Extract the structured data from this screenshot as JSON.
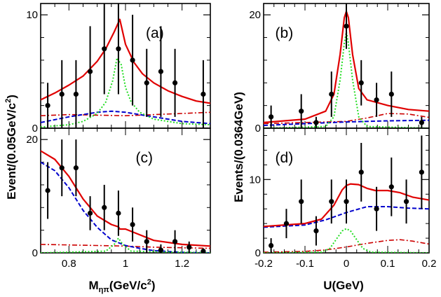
{
  "colors": {
    "total": "#e00000",
    "signal": "#22dd22",
    "background1": "#0000cc",
    "background2": "#cc0000",
    "data": "#000000"
  },
  "labels": {
    "left_ylabel": "Event/(0.05GeV/c",
    "left_ylabel_exp": "2",
    "left_ylabel_tail": ")",
    "right_ylabel": "Events/(0.0364GeV)",
    "left_xlabel_main": "M",
    "left_xlabel_sub": "ηπ",
    "left_xlabel_rest": "(GeV/c",
    "left_xlabel_exp": "2",
    "left_xlabel_tail": ")",
    "right_xlabel": "U(GeV)"
  },
  "chart_data": [
    {
      "type": "scatter",
      "panel": "(a)",
      "xlim": [
        0.7,
        1.3
      ],
      "ylim": [
        0,
        11
      ],
      "xticks": [],
      "yticks": [
        0,
        10
      ],
      "points": [
        {
          "x": 0.725,
          "y": 2,
          "err": 2
        },
        {
          "x": 0.775,
          "y": 3,
          "err": 3
        },
        {
          "x": 0.825,
          "y": 3,
          "err": 3
        },
        {
          "x": 0.875,
          "y": 5,
          "err": 4
        },
        {
          "x": 0.925,
          "y": 7,
          "err": 4
        },
        {
          "x": 0.975,
          "y": 7,
          "err": 4
        },
        {
          "x": 1.025,
          "y": 6,
          "err": 4
        },
        {
          "x": 1.075,
          "y": 4,
          "err": 3
        },
        {
          "x": 1.125,
          "y": 5,
          "err": 4
        },
        {
          "x": 1.175,
          "y": 4,
          "err": 3
        },
        {
          "x": 1.275,
          "y": 3,
          "err": 3
        }
      ],
      "series": [
        {
          "role": "total",
          "x": [
            0.7,
            0.75,
            0.8,
            0.85,
            0.9,
            0.93,
            0.96,
            0.98,
            1.0,
            1.03,
            1.06,
            1.1,
            1.15,
            1.2,
            1.25,
            1.3
          ],
          "y": [
            2.5,
            3.1,
            3.8,
            4.6,
            5.9,
            7.0,
            8.5,
            9.6,
            7.4,
            5.8,
            4.8,
            4.0,
            3.3,
            2.8,
            2.4,
            2.2
          ]
        },
        {
          "role": "signal",
          "x": [
            0.7,
            0.8,
            0.85,
            0.9,
            0.93,
            0.955,
            0.97,
            0.985,
            1.0,
            1.02,
            1.05,
            1.1,
            1.2,
            1.3
          ],
          "y": [
            0.1,
            0.3,
            0.6,
            1.3,
            2.3,
            4.2,
            6.2,
            5.6,
            3.6,
            2.3,
            1.4,
            0.8,
            0.4,
            0.3
          ]
        },
        {
          "role": "background1",
          "x": [
            0.7,
            0.8,
            0.9,
            0.95,
            1.0,
            1.05,
            1.1,
            1.2,
            1.3
          ],
          "y": [
            0.5,
            1.0,
            1.4,
            1.5,
            1.4,
            1.2,
            1.0,
            0.6,
            0.4
          ]
        },
        {
          "role": "background2",
          "x": [
            0.7,
            0.8,
            0.9,
            1.0,
            1.1,
            1.2,
            1.3
          ],
          "y": [
            1.1,
            1.2,
            1.15,
            1.1,
            1.2,
            1.3,
            1.4
          ]
        }
      ]
    },
    {
      "type": "scatter",
      "panel": "(b)",
      "xlim": [
        -0.2,
        0.2
      ],
      "ylim": [
        0,
        22
      ],
      "xticks": [],
      "yticks": [
        0,
        20
      ],
      "points": [
        {
          "x": -0.182,
          "y": 2,
          "err": 2
        },
        {
          "x": -0.109,
          "y": 3,
          "err": 3
        },
        {
          "x": -0.073,
          "y": 1,
          "err": 1
        },
        {
          "x": -0.036,
          "y": 6,
          "err": 4
        },
        {
          "x": 0.0,
          "y": 18,
          "err": 4
        },
        {
          "x": 0.036,
          "y": 8,
          "err": 4
        },
        {
          "x": 0.073,
          "y": 5,
          "err": 3
        },
        {
          "x": 0.109,
          "y": 6,
          "err": 4
        },
        {
          "x": 0.182,
          "y": 1,
          "err": 1
        }
      ],
      "series": [
        {
          "role": "total",
          "x": [
            -0.2,
            -0.1,
            -0.05,
            -0.03,
            -0.015,
            -0.005,
            0.0,
            0.005,
            0.015,
            0.03,
            0.05,
            0.1,
            0.15,
            0.2
          ],
          "y": [
            1.0,
            1.6,
            3.0,
            6.0,
            13.0,
            19.5,
            20.6,
            19.5,
            13.0,
            7.0,
            5.0,
            4.0,
            3.3,
            3.0
          ]
        },
        {
          "role": "signal",
          "x": [
            -0.2,
            -0.05,
            -0.03,
            -0.015,
            -0.005,
            0.0,
            0.005,
            0.015,
            0.03,
            0.05,
            0.2
          ],
          "y": [
            0.0,
            0.3,
            2.0,
            8.5,
            15.0,
            17.0,
            15.0,
            8.5,
            2.0,
            0.3,
            0.0
          ]
        },
        {
          "role": "background1",
          "x": [
            -0.2,
            -0.1,
            0.0,
            0.1,
            0.2
          ],
          "y": [
            0.5,
            0.8,
            1.1,
            1.3,
            1.4
          ]
        },
        {
          "role": "background2",
          "x": [
            -0.2,
            -0.1,
            0.0,
            0.05,
            0.1,
            0.15,
            0.2
          ],
          "y": [
            0.8,
            1.0,
            1.2,
            1.8,
            2.6,
            2.5,
            1.9
          ]
        }
      ]
    },
    {
      "type": "scatter",
      "panel": "(c)",
      "xlim": [
        0.7,
        1.3
      ],
      "ylim": [
        0,
        22
      ],
      "xticks": [
        0.8,
        1.0,
        1.2
      ],
      "yticks": [
        0,
        20
      ],
      "points": [
        {
          "x": 0.725,
          "y": 11,
          "err": 5
        },
        {
          "x": 0.775,
          "y": 15,
          "err": 5
        },
        {
          "x": 0.825,
          "y": 15,
          "err": 5
        },
        {
          "x": 0.875,
          "y": 7,
          "err": 3
        },
        {
          "x": 0.925,
          "y": 8,
          "err": 4
        },
        {
          "x": 0.975,
          "y": 7,
          "err": 4
        },
        {
          "x": 1.025,
          "y": 5,
          "err": 3
        },
        {
          "x": 1.075,
          "y": 2,
          "err": 2
        },
        {
          "x": 1.125,
          "y": 0.5,
          "err": 1
        },
        {
          "x": 1.175,
          "y": 2,
          "err": 2
        },
        {
          "x": 1.225,
          "y": 1,
          "err": 1
        },
        {
          "x": 1.275,
          "y": 0.3,
          "err": 0.5
        }
      ],
      "series": [
        {
          "role": "total",
          "x": [
            0.7,
            0.75,
            0.8,
            0.85,
            0.9,
            0.95,
            0.975,
            0.98,
            1.0,
            1.05,
            1.1,
            1.2,
            1.3
          ],
          "y": [
            18.0,
            16.5,
            13.5,
            9.5,
            6.5,
            5.0,
            4.6,
            4.2,
            4.2,
            3.2,
            2.2,
            1.5,
            1.2
          ]
        },
        {
          "role": "signal",
          "x": [
            0.7,
            0.93,
            0.96,
            0.975,
            0.99,
            1.02,
            1.3
          ],
          "y": [
            0.0,
            0.3,
            1.5,
            2.6,
            1.5,
            0.3,
            0.0
          ]
        },
        {
          "role": "background1",
          "x": [
            0.7,
            0.75,
            0.8,
            0.85,
            0.9,
            0.95,
            1.0,
            1.05,
            1.1,
            1.2,
            1.3
          ],
          "y": [
            16.0,
            14.5,
            11.5,
            7.5,
            4.5,
            2.3,
            1.3,
            0.8,
            0.4,
            0.1,
            0.0
          ]
        },
        {
          "role": "background2",
          "x": [
            0.7,
            0.8,
            0.9,
            1.0,
            1.1,
            1.2,
            1.3
          ],
          "y": [
            1.5,
            1.4,
            1.3,
            1.2,
            1.0,
            0.9,
            0.8
          ]
        }
      ]
    },
    {
      "type": "scatter",
      "panel": "(d)",
      "xlim": [
        -0.2,
        0.2
      ],
      "ylim": [
        0,
        17
      ],
      "xticks": [
        -0.2,
        -0.1,
        0,
        0.1,
        0.2
      ],
      "xticklabels": [
        "-0.2",
        "-0.1",
        "0",
        "0.1",
        "0.2"
      ],
      "yticks": [
        0,
        10
      ],
      "points": [
        {
          "x": -0.182,
          "y": 1,
          "err": 1
        },
        {
          "x": -0.145,
          "y": 4,
          "err": 2
        },
        {
          "x": -0.109,
          "y": 7,
          "err": 3
        },
        {
          "x": -0.073,
          "y": 3,
          "err": 2
        },
        {
          "x": -0.036,
          "y": 7,
          "err": 3
        },
        {
          "x": 0.0,
          "y": 7,
          "err": 3
        },
        {
          "x": 0.036,
          "y": 11,
          "err": 4
        },
        {
          "x": 0.073,
          "y": 6,
          "err": 3
        },
        {
          "x": 0.109,
          "y": 9,
          "err": 4
        },
        {
          "x": 0.145,
          "y": 7,
          "err": 3
        },
        {
          "x": 0.182,
          "y": 11,
          "err": 5
        }
      ],
      "series": [
        {
          "role": "total",
          "x": [
            -0.2,
            -0.1,
            -0.06,
            -0.03,
            -0.01,
            0.0,
            0.01,
            0.03,
            0.05,
            0.07,
            0.1,
            0.13,
            0.16,
            0.2
          ],
          "y": [
            3.6,
            4.0,
            4.6,
            6.5,
            8.6,
            9.2,
            9.4,
            9.3,
            8.8,
            8.5,
            8.5,
            8.2,
            7.6,
            7.2
          ]
        },
        {
          "role": "signal",
          "x": [
            -0.2,
            -0.06,
            -0.04,
            -0.02,
            -0.01,
            0.0,
            0.01,
            0.02,
            0.04,
            0.06,
            0.2
          ],
          "y": [
            0.0,
            0.1,
            0.6,
            2.2,
            3.0,
            3.3,
            3.0,
            2.2,
            0.6,
            0.1,
            0.0
          ]
        },
        {
          "role": "background1",
          "x": [
            -0.2,
            -0.1,
            -0.05,
            0.0,
            0.05,
            0.1,
            0.15,
            0.2
          ],
          "y": [
            3.5,
            3.8,
            4.5,
            5.5,
            6.3,
            6.3,
            6.1,
            6.0
          ]
        },
        {
          "role": "background2",
          "x": [
            -0.2,
            -0.1,
            -0.05,
            0.0,
            0.05,
            0.1,
            0.13,
            0.16,
            0.2
          ],
          "y": [
            0.1,
            0.2,
            0.4,
            0.8,
            1.3,
            1.7,
            1.8,
            1.6,
            1.2
          ]
        }
      ]
    }
  ]
}
